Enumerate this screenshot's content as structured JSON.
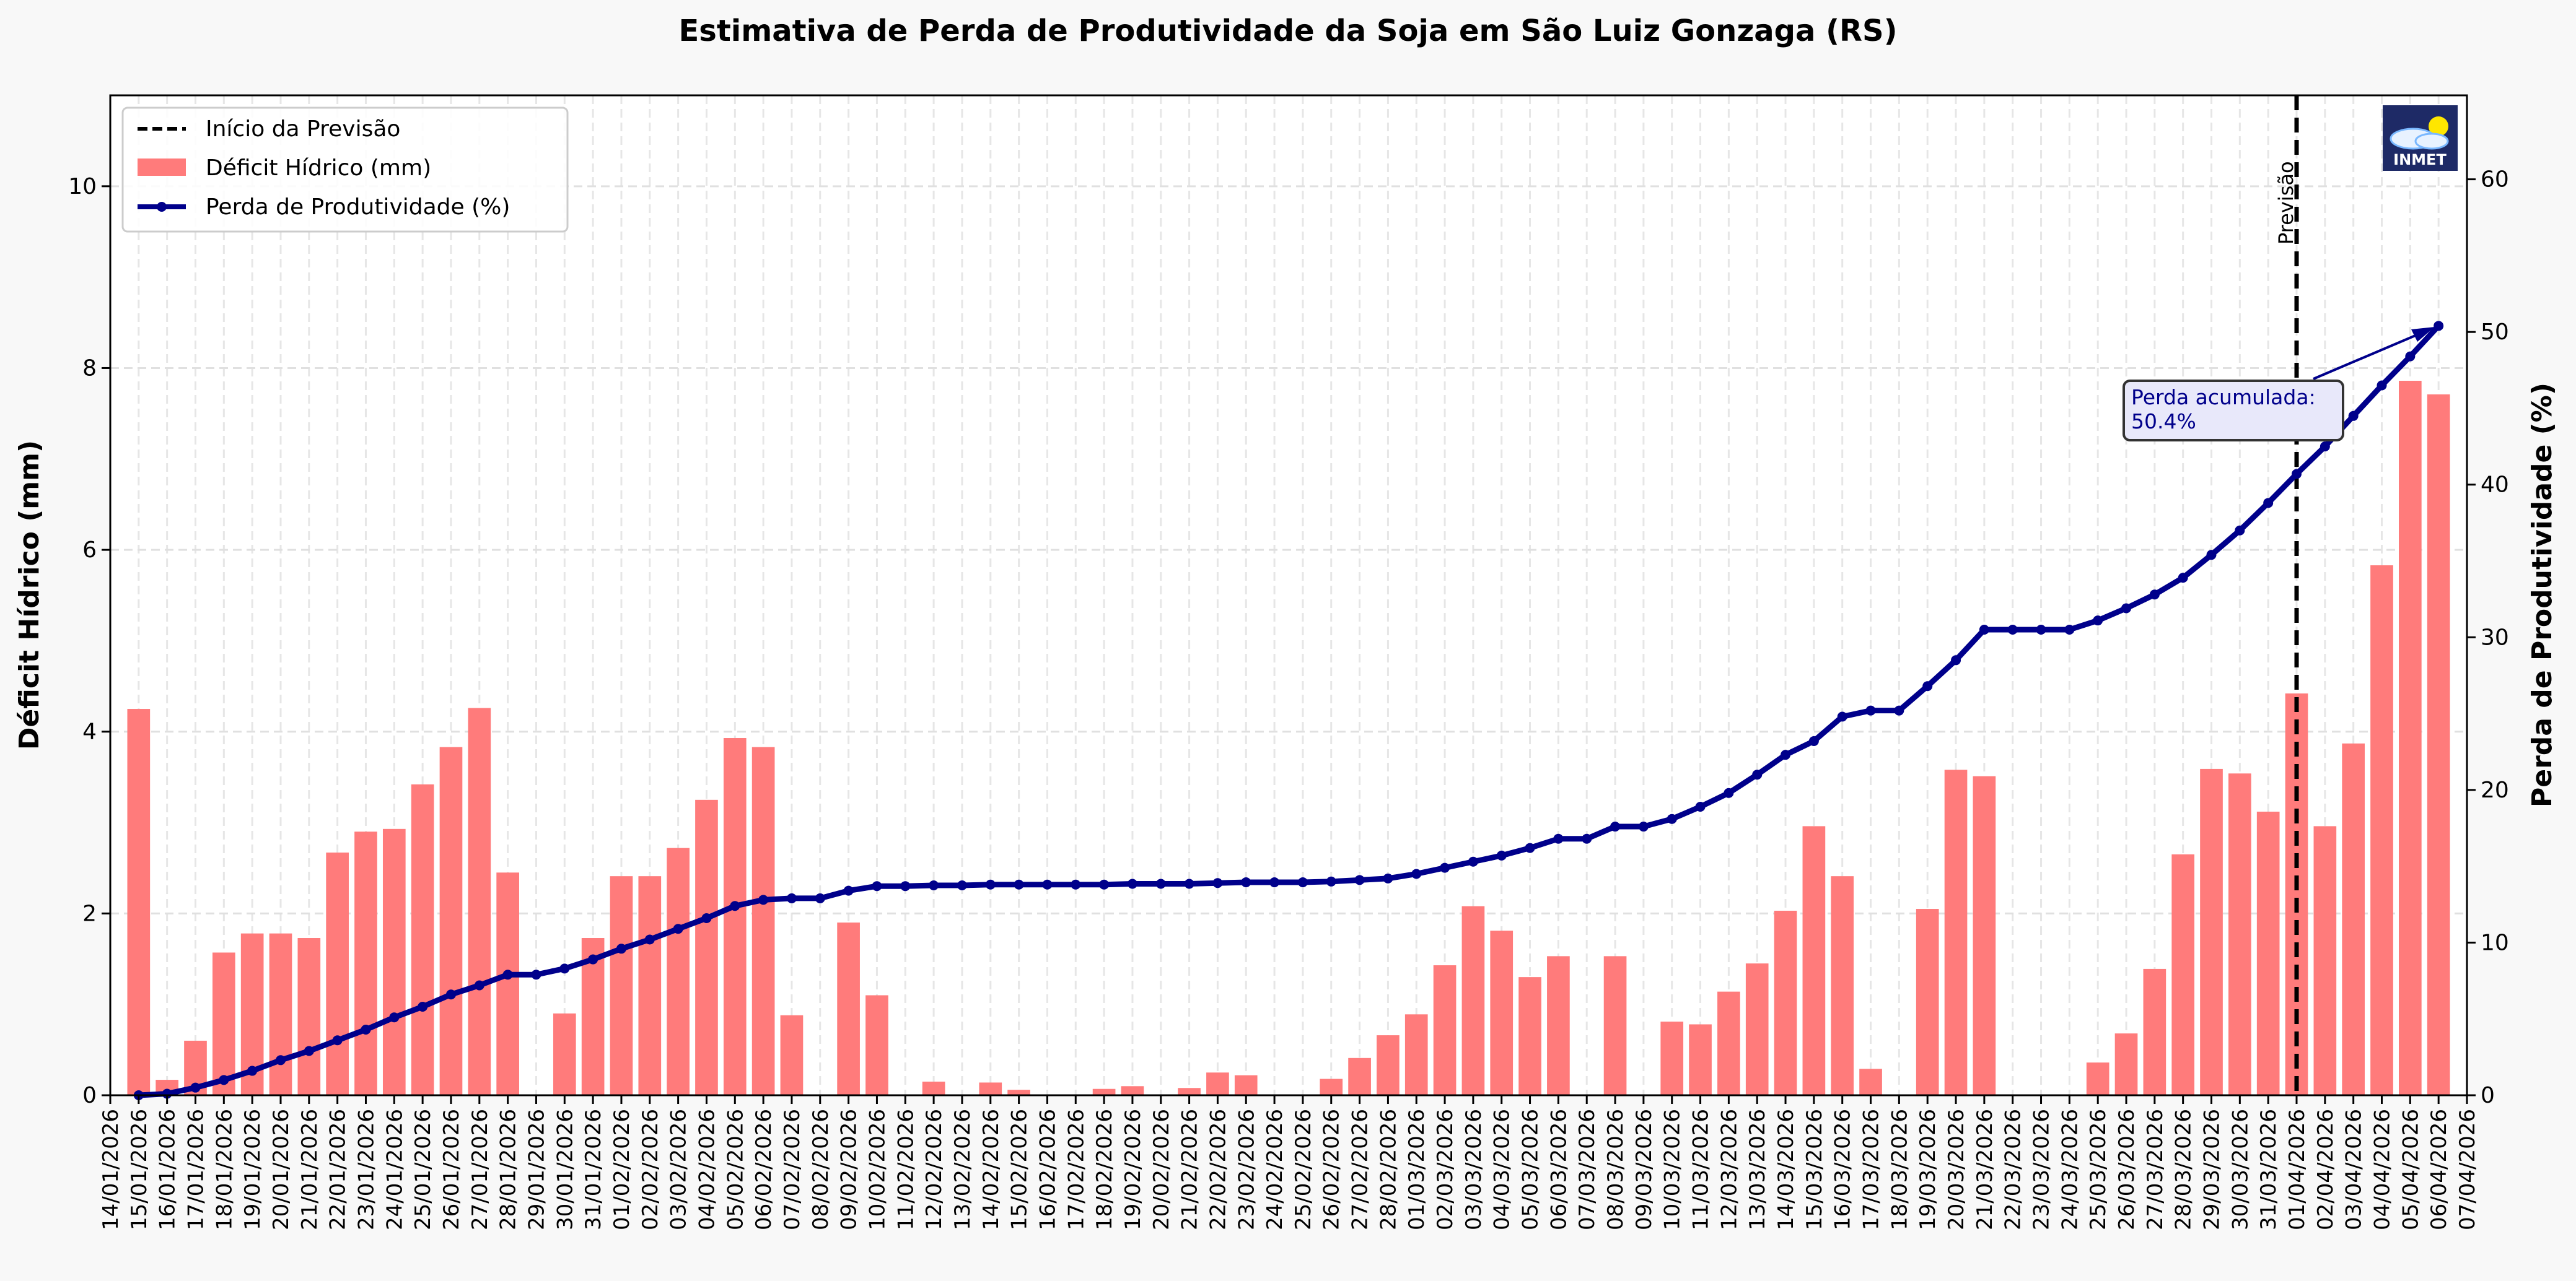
{
  "chart_data": {
    "type": "bar+line",
    "title": "Estimativa de Perda de Produtividade da Soja em São Luiz Gonzaga (RS)",
    "ylabel_left": "Déficit Hídrico (mm)",
    "ylabel_right": "Perda de Produtividade (%)",
    "ylim_left": [
      0,
      11
    ],
    "ylim_right": [
      0,
      65.5
    ],
    "yticks_left": [
      0,
      2,
      4,
      6,
      8,
      10
    ],
    "yticks_right": [
      0,
      10,
      20,
      30,
      40,
      50,
      60
    ],
    "grid": true,
    "legend_position": "top-left",
    "legend": {
      "forecast": "Início da Previsão",
      "deficit": "Déficit Hídrico (mm)",
      "loss": "Perda de Produtividade (%)"
    },
    "x_tick_labels": [
      "14/01/2026",
      "15/01/2026",
      "16/01/2026",
      "17/01/2026",
      "18/01/2026",
      "19/01/2026",
      "20/01/2026",
      "21/01/2026",
      "22/01/2026",
      "23/01/2026",
      "24/01/2026",
      "25/01/2026",
      "26/01/2026",
      "27/01/2026",
      "28/01/2026",
      "29/01/2026",
      "30/01/2026",
      "31/01/2026",
      "01/02/2026",
      "02/02/2026",
      "03/02/2026",
      "04/02/2026",
      "05/02/2026",
      "06/02/2026",
      "07/02/2026",
      "08/02/2026",
      "09/02/2026",
      "10/02/2026",
      "11/02/2026",
      "12/02/2026",
      "13/02/2026",
      "14/02/2026",
      "15/02/2026",
      "16/02/2026",
      "17/02/2026",
      "18/02/2026",
      "19/02/2026",
      "20/02/2026",
      "21/02/2026",
      "22/02/2026",
      "23/02/2026",
      "24/02/2026",
      "25/02/2026",
      "26/02/2026",
      "27/02/2026",
      "28/02/2026",
      "01/03/2026",
      "02/03/2026",
      "03/03/2026",
      "04/03/2026",
      "05/03/2026",
      "06/03/2026",
      "07/03/2026",
      "08/03/2026",
      "09/03/2026",
      "10/03/2026",
      "11/03/2026",
      "12/03/2026",
      "13/03/2026",
      "14/03/2026",
      "15/03/2026",
      "16/03/2026",
      "17/03/2026",
      "18/03/2026",
      "19/03/2026",
      "20/03/2026",
      "21/03/2026",
      "22/03/2026",
      "23/03/2026",
      "24/03/2026",
      "25/03/2026",
      "26/03/2026",
      "27/03/2026",
      "28/03/2026",
      "29/03/2026",
      "30/03/2026",
      "31/03/2026",
      "01/04/2026",
      "02/04/2026",
      "03/04/2026",
      "04/04/2026",
      "05/04/2026",
      "06/04/2026",
      "07/04/2026"
    ],
    "data_start_tick_index": 1,
    "deficit_mm": [
      4.25,
      0.17,
      0.6,
      1.57,
      1.78,
      1.78,
      1.73,
      2.67,
      2.9,
      2.93,
      3.42,
      3.83,
      4.26,
      2.45,
      0,
      0.9,
      1.73,
      2.41,
      2.41,
      2.72,
      3.25,
      3.93,
      3.83,
      0.88,
      0,
      1.9,
      1.1,
      0,
      0.15,
      0,
      0.14,
      0.06,
      0,
      0,
      0.07,
      0.1,
      0,
      0.08,
      0.25,
      0.22,
      0,
      0,
      0.18,
      0.41,
      0.66,
      0.89,
      1.43,
      2.08,
      1.81,
      1.3,
      1.53,
      0,
      1.53,
      0,
      0.81,
      0.78,
      1.14,
      1.45,
      2.03,
      2.96,
      2.41,
      0.29,
      0,
      2.05,
      3.58,
      3.51,
      0,
      0,
      0,
      0.36,
      0.68,
      1.39,
      2.65,
      3.59,
      3.54,
      3.12,
      4.42,
      2.96,
      3.87,
      5.83,
      7.86,
      7.71
    ],
    "loss_pct": [
      0,
      0.1,
      0.5,
      1.0,
      1.6,
      2.3,
      2.9,
      3.6,
      4.3,
      5.1,
      5.8,
      6.6,
      7.2,
      7.9,
      7.9,
      8.3,
      8.9,
      9.6,
      10.2,
      10.9,
      11.6,
      12.4,
      12.8,
      12.9,
      12.9,
      13.4,
      13.7,
      13.7,
      13.75,
      13.75,
      13.8,
      13.8,
      13.8,
      13.8,
      13.8,
      13.85,
      13.85,
      13.85,
      13.9,
      13.95,
      13.95,
      13.95,
      14.0,
      14.1,
      14.2,
      14.5,
      14.9,
      15.3,
      15.7,
      16.2,
      16.8,
      16.8,
      17.6,
      17.6,
      18.1,
      18.9,
      19.8,
      21.0,
      22.3,
      23.2,
      24.8,
      25.2,
      25.2,
      26.8,
      28.5,
      30.5,
      30.5,
      30.5,
      30.5,
      31.1,
      31.9,
      32.8,
      33.9,
      35.4,
      37.0,
      38.8,
      40.7,
      42.5,
      44.5,
      46.5,
      48.4,
      50.4
    ],
    "forecast_start": "01/04/2026",
    "forecast_label": "Previsão",
    "annotation": {
      "line1": "Perda acumulada:",
      "line2": "50.4%"
    },
    "logo_text": "INMET",
    "colors": {
      "bar": "#ff7b7b",
      "line": "#00008b",
      "forecast": "#000000",
      "annot_bg": "#e8e8fa",
      "logo_bg": "#1e2a66"
    }
  }
}
